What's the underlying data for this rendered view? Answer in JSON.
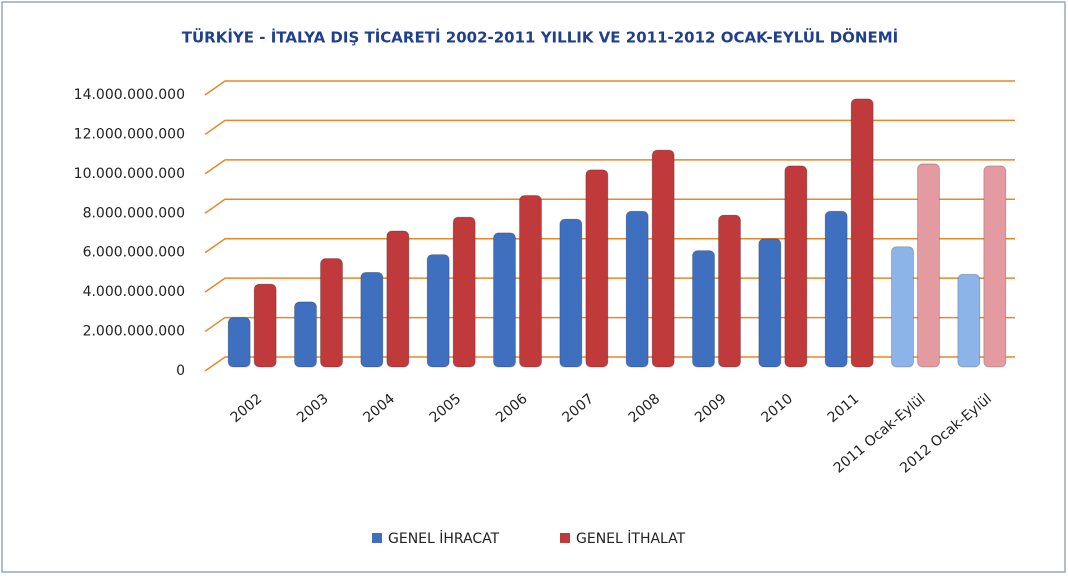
{
  "chart_data": {
    "type": "bar",
    "title": "TÜRKİYE - İTALYA DIŞ TİCARETİ 2002-2011 YILLIK VE 2011-2012 OCAK-EYLÜL DÖNEMİ",
    "categories": [
      "2002",
      "2003",
      "2004",
      "2005",
      "2006",
      "2007",
      "2008",
      "2009",
      "2010",
      "2011",
      "2011 Ocak-Eylül",
      "2012 Ocak-Eylül"
    ],
    "series": [
      {
        "name": "GENEL İHRACAT",
        "color": "#3f6fbf",
        "colors": [
          "#3f6fbf",
          "#3f6fbf",
          "#3f6fbf",
          "#3f6fbf",
          "#3f6fbf",
          "#3f6fbf",
          "#3f6fbf",
          "#3f6fbf",
          "#3f6fbf",
          "#3f6fbf",
          "#8db4e8",
          "#8db4e8"
        ],
        "values": [
          2400000000,
          3200000000,
          4700000000,
          5600000000,
          6700000000,
          7400000000,
          7800000000,
          5800000000,
          6400000000,
          7800000000,
          6000000000,
          4600000000
        ]
      },
      {
        "name": "GENEL İTHALAT",
        "color": "#c0393b",
        "colors": [
          "#c0393b",
          "#c0393b",
          "#c0393b",
          "#c0393b",
          "#c0393b",
          "#c0393b",
          "#c0393b",
          "#c0393b",
          "#c0393b",
          "#c0393b",
          "#e39aa0",
          "#e39aa0"
        ],
        "values": [
          4100000000,
          5400000000,
          6800000000,
          7500000000,
          8600000000,
          9900000000,
          10900000000,
          7600000000,
          10100000000,
          13500000000,
          10200000000,
          10100000000
        ]
      }
    ],
    "ylim": [
      0,
      14000000000
    ],
    "yticks": [
      0,
      {
        "value": 2000000000,
        "label": "2.000.000.000"
      },
      {
        "value": 4000000000,
        "label": "4.000.000.000"
      },
      {
        "value": 6000000000,
        "label": "6.000.000.000"
      },
      {
        "value": 8000000000,
        "label": "8.000.000.000"
      },
      {
        "value": 10000000000,
        "label": "10.000.000.000"
      },
      {
        "value": 12000000000,
        "label": "12.000.000.000"
      },
      {
        "value": 14000000000,
        "label": "14.000.000.000"
      }
    ],
    "grid": true,
    "grid_color": "#e8872a",
    "legend": "bottom"
  }
}
